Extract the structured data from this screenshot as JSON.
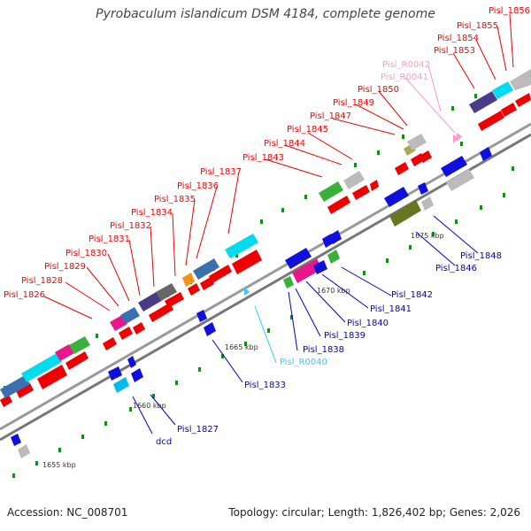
{
  "title": "Pyrobaculum islandicum DSM 4184, complete genome",
  "footer": {
    "accession": "Accession: NC_008701",
    "topology": "Topology: circular; Length: 1,826,402 bp; Genes: 2,026"
  },
  "colors": {
    "fwd_strand_label": "#ff0000",
    "rev_strand_label": "#0000cc",
    "rna_fwd_label": "#ff99cc",
    "rna_rev_label": "#33ccff",
    "backbone": "#888888",
    "tick": "#006600"
  },
  "scale_labels": [
    "1655 kbp",
    "1660 kbp",
    "1665 kbp",
    "1670 kbp",
    "1675 kbp"
  ],
  "genes_top": [
    "Pisl_1826",
    "Pisl_1828",
    "Pisl_1829",
    "Pisl_1830",
    "Pisl_1831",
    "Pisl_1832",
    "Pisl_1834",
    "Pisl_1835",
    "Pisl_1836",
    "Pisl_1837",
    "Pisl_1843",
    "Pisl_1844",
    "Pisl_1845",
    "Pisl_1847",
    "Pisl_1849",
    "Pisl_1850",
    "Pisl_R0041",
    "Pisl_R0042",
    "Pisl_1853",
    "Pisl_1854",
    "Pisl_1855",
    "Pisl_1856"
  ],
  "genes_bottom": [
    "dcd",
    "Pisl_1827",
    "Pisl_1833",
    "Pisl_R0040",
    "Pisl_1838",
    "Pisl_1839",
    "Pisl_1840",
    "Pisl_1841",
    "Pisl_1842",
    "Pisl_1846",
    "Pisl_1848"
  ]
}
